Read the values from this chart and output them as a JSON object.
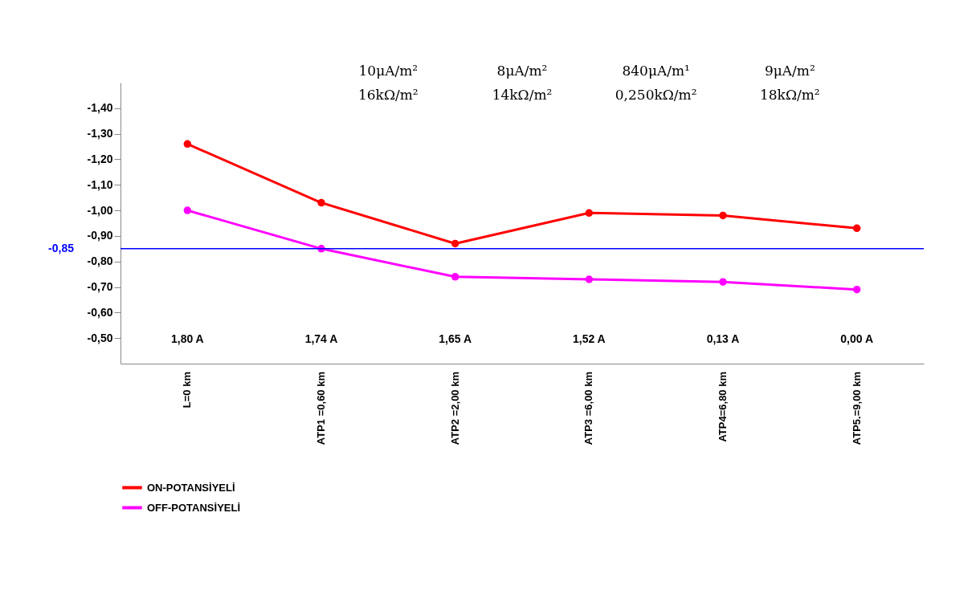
{
  "chart_data": {
    "type": "line",
    "categories": [
      "L=0 km",
      "ATP1 =0,60 km",
      "ATP2 =2,00 km",
      "ATP3 =6,00 km",
      "ATP4=6,80 km",
      "ATP5.=9,00 km"
    ],
    "series": [
      {
        "name": "ON-POTANSİYELİ",
        "color": "#ff0000",
        "values": [
          -1.26,
          -1.03,
          -0.87,
          -0.99,
          -0.98,
          -0.93
        ]
      },
      {
        "name": "OFF-POTANSİYELİ",
        "color": "#ff00ff",
        "values": [
          -1.0,
          -0.85,
          -0.74,
          -0.73,
          -0.72,
          -0.69
        ]
      }
    ],
    "ylim": [
      -0.4,
      -1.5
    ],
    "yticks": [
      {
        "value": -0.5,
        "label": "-0,50"
      },
      {
        "value": -0.6,
        "label": "-0,60"
      },
      {
        "value": -0.7,
        "label": "-0,70"
      },
      {
        "value": -0.8,
        "label": "-0,80"
      },
      {
        "value": -0.9,
        "label": "-0,90"
      },
      {
        "value": -1.0,
        "label": "-1,00"
      },
      {
        "value": -1.1,
        "label": "-1,10"
      },
      {
        "value": -1.2,
        "label": "-1,20"
      },
      {
        "value": -1.3,
        "label": "-1,30"
      },
      {
        "value": -1.4,
        "label": "-1,40"
      }
    ],
    "ref_lines": [
      {
        "axis": "y",
        "value": -0.85,
        "label": "-0,85",
        "color": "#0000ff"
      }
    ],
    "annotations": [
      "1,80 A",
      "1,74 A",
      "1,65 A",
      "1,52 A",
      "0,13 A",
      "0,00 A",
      "10μA/m² 16kΩ/m²",
      "8μA/m² 14kΩ/m²",
      "840μA/m¹ 0,250kΩ/m²",
      "9μA/m² 18kΩ/m²"
    ],
    "marker": "circle",
    "legend": "bottom left",
    "grid": false
  }
}
